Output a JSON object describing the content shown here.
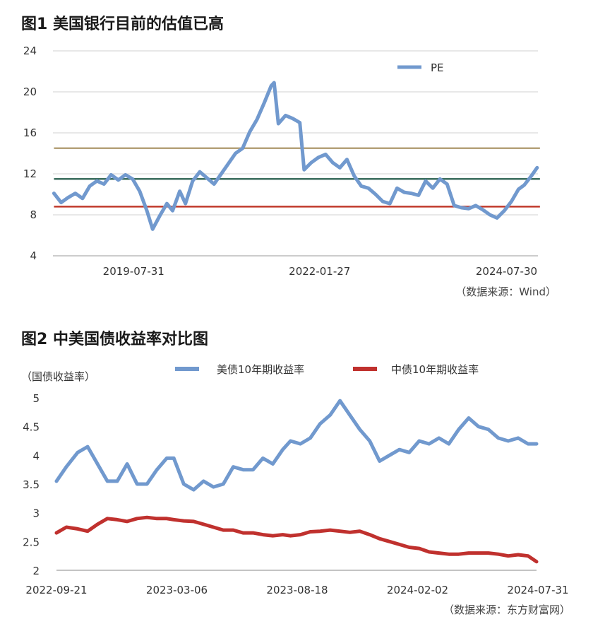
{
  "figure1": {
    "title": "图1  美国银行目前的估值已高",
    "source": "（数据来源：Wind）",
    "chart_data": {
      "type": "line",
      "title": "图1  美国银行目前的估值已高",
      "x_tick_labels": [
        "2019-07-31",
        "2022-01-27",
        "2024-07-30"
      ],
      "x_range": [
        "2018-07-01",
        "2024-12-31"
      ],
      "y_ticks": [
        4,
        8,
        12,
        16,
        20,
        24
      ],
      "ylim": [
        4,
        24
      ],
      "grid": "horizontal",
      "legend": "top-right",
      "series": [
        {
          "name": "PE",
          "color": "#7199CE",
          "points": [
            [
              "2018-07-06",
              10.1
            ],
            [
              "2018-08-10",
              9.2
            ],
            [
              "2018-09-14",
              9.7
            ],
            [
              "2018-10-19",
              10.1
            ],
            [
              "2018-11-23",
              9.6
            ],
            [
              "2018-12-28",
              10.8
            ],
            [
              "2019-02-01",
              11.3
            ],
            [
              "2019-03-08",
              11.0
            ],
            [
              "2019-04-12",
              11.9
            ],
            [
              "2019-05-17",
              11.4
            ],
            [
              "2019-06-21",
              11.9
            ],
            [
              "2019-07-26",
              11.5
            ],
            [
              "2019-08-30",
              10.3
            ],
            [
              "2019-10-04",
              8.4
            ],
            [
              "2019-11-01",
              6.6
            ],
            [
              "2019-12-06",
              7.9
            ],
            [
              "2020-01-10",
              9.1
            ],
            [
              "2020-02-07",
              8.4
            ],
            [
              "2020-03-13",
              10.3
            ],
            [
              "2020-04-10",
              9.1
            ],
            [
              "2020-05-15",
              11.3
            ],
            [
              "2020-06-19",
              12.2
            ],
            [
              "2020-07-24",
              11.6
            ],
            [
              "2020-08-28",
              11.0
            ],
            [
              "2020-10-02",
              12.0
            ],
            [
              "2020-11-06",
              13.0
            ],
            [
              "2020-12-11",
              14.0
            ],
            [
              "2021-01-15",
              14.5
            ],
            [
              "2021-02-19",
              16.1
            ],
            [
              "2021-03-26",
              17.3
            ],
            [
              "2021-04-30",
              18.9
            ],
            [
              "2021-06-04",
              20.6
            ],
            [
              "2021-06-18",
              20.9
            ],
            [
              "2021-07-09",
              16.9
            ],
            [
              "2021-08-13",
              17.7
            ],
            [
              "2021-09-17",
              17.4
            ],
            [
              "2021-10-22",
              17.0
            ],
            [
              "2021-11-12",
              12.4
            ],
            [
              "2021-12-17",
              13.1
            ],
            [
              "2022-01-21",
              13.6
            ],
            [
              "2022-02-25",
              13.9
            ],
            [
              "2022-04-01",
              13.1
            ],
            [
              "2022-05-06",
              12.6
            ],
            [
              "2022-06-10",
              13.4
            ],
            [
              "2022-07-15",
              11.8
            ],
            [
              "2022-08-19",
              10.8
            ],
            [
              "2022-09-23",
              10.6
            ],
            [
              "2022-10-28",
              10.0
            ],
            [
              "2022-12-02",
              9.3
            ],
            [
              "2023-01-06",
              9.1
            ],
            [
              "2023-02-10",
              10.6
            ],
            [
              "2023-03-17",
              10.2
            ],
            [
              "2023-04-21",
              10.1
            ],
            [
              "2023-05-26",
              9.9
            ],
            [
              "2023-06-30",
              11.3
            ],
            [
              "2023-08-04",
              10.6
            ],
            [
              "2023-09-08",
              11.5
            ],
            [
              "2023-10-13",
              11.0
            ],
            [
              "2023-11-17",
              8.9
            ],
            [
              "2023-12-22",
              8.7
            ],
            [
              "2024-01-26",
              8.6
            ],
            [
              "2024-03-01",
              8.9
            ],
            [
              "2024-04-05",
              8.5
            ],
            [
              "2024-05-10",
              8.0
            ],
            [
              "2024-06-14",
              7.7
            ],
            [
              "2024-07-19",
              8.4
            ],
            [
              "2024-08-23",
              9.3
            ],
            [
              "2024-09-27",
              10.5
            ],
            [
              "2024-10-25",
              10.9
            ],
            [
              "2024-11-29",
              11.8
            ],
            [
              "2024-12-27",
              12.6
            ]
          ]
        }
      ],
      "reference_lines": [
        {
          "value": 14.5,
          "color": "#B5A27A"
        },
        {
          "value": 11.5,
          "color": "#3C6E5F"
        },
        {
          "value": 8.8,
          "color": "#C0392B"
        }
      ]
    }
  },
  "figure2": {
    "title": "图2  中美国债收益率对比图",
    "source": "（数据来源：东方财富网）",
    "unit_label": "（国债收益率）",
    "chart_data": {
      "type": "line",
      "title": "图2  中美国债收益率对比图",
      "ylabel": "（国债收益率）",
      "x_tick_labels": [
        "2022-09-21",
        "2023-03-06",
        "2023-08-18",
        "2024-02-02",
        "2024-07-31"
      ],
      "x_range": [
        "2022-09-21",
        "2024-07-31"
      ],
      "y_ticks": [
        2,
        2.5,
        3,
        3.5,
        4,
        4.5,
        5
      ],
      "ylim": [
        2,
        5
      ],
      "grid": "none",
      "legend": "top",
      "series": [
        {
          "name": "美债10年期收益率",
          "color": "#7199CE",
          "points": [
            [
              "2022-09-21",
              3.55
            ],
            [
              "2022-10-05",
              3.8
            ],
            [
              "2022-10-21",
              4.05
            ],
            [
              "2022-11-04",
              4.15
            ],
            [
              "2022-11-18",
              3.85
            ],
            [
              "2022-12-02",
              3.55
            ],
            [
              "2022-12-16",
              3.55
            ],
            [
              "2022-12-30",
              3.85
            ],
            [
              "2023-01-13",
              3.5
            ],
            [
              "2023-01-27",
              3.5
            ],
            [
              "2023-02-10",
              3.75
            ],
            [
              "2023-02-24",
              3.95
            ],
            [
              "2023-03-06",
              3.95
            ],
            [
              "2023-03-20",
              3.5
            ],
            [
              "2023-04-03",
              3.4
            ],
            [
              "2023-04-17",
              3.55
            ],
            [
              "2023-05-01",
              3.45
            ],
            [
              "2023-05-15",
              3.5
            ],
            [
              "2023-05-29",
              3.8
            ],
            [
              "2023-06-12",
              3.75
            ],
            [
              "2023-06-26",
              3.75
            ],
            [
              "2023-07-10",
              3.95
            ],
            [
              "2023-07-24",
              3.85
            ],
            [
              "2023-08-07",
              4.1
            ],
            [
              "2023-08-18",
              4.25
            ],
            [
              "2023-09-01",
              4.2
            ],
            [
              "2023-09-15",
              4.3
            ],
            [
              "2023-09-29",
              4.55
            ],
            [
              "2023-10-13",
              4.7
            ],
            [
              "2023-10-27",
              4.95
            ],
            [
              "2023-11-10",
              4.7
            ],
            [
              "2023-11-24",
              4.45
            ],
            [
              "2023-12-08",
              4.25
            ],
            [
              "2023-12-22",
              3.9
            ],
            [
              "2024-01-05",
              4.0
            ],
            [
              "2024-01-19",
              4.1
            ],
            [
              "2024-02-02",
              4.05
            ],
            [
              "2024-02-16",
              4.25
            ],
            [
              "2024-03-01",
              4.2
            ],
            [
              "2024-03-15",
              4.3
            ],
            [
              "2024-03-29",
              4.2
            ],
            [
              "2024-04-12",
              4.45
            ],
            [
              "2024-04-26",
              4.65
            ],
            [
              "2024-05-10",
              4.5
            ],
            [
              "2024-05-24",
              4.45
            ],
            [
              "2024-06-07",
              4.3
            ],
            [
              "2024-06-21",
              4.25
            ],
            [
              "2024-07-05",
              4.3
            ],
            [
              "2024-07-19",
              4.2
            ],
            [
              "2024-07-31",
              4.2
            ]
          ]
        },
        {
          "name": "中债10年期收益率",
          "color": "#C0312E",
          "points": [
            [
              "2022-09-21",
              2.65
            ],
            [
              "2022-10-05",
              2.75
            ],
            [
              "2022-10-21",
              2.72
            ],
            [
              "2022-11-04",
              2.68
            ],
            [
              "2022-11-18",
              2.8
            ],
            [
              "2022-12-02",
              2.9
            ],
            [
              "2022-12-16",
              2.88
            ],
            [
              "2022-12-30",
              2.85
            ],
            [
              "2023-01-13",
              2.9
            ],
            [
              "2023-01-27",
              2.92
            ],
            [
              "2023-02-10",
              2.9
            ],
            [
              "2023-02-24",
              2.9
            ],
            [
              "2023-03-06",
              2.88
            ],
            [
              "2023-03-20",
              2.86
            ],
            [
              "2023-04-03",
              2.85
            ],
            [
              "2023-04-17",
              2.8
            ],
            [
              "2023-05-01",
              2.75
            ],
            [
              "2023-05-15",
              2.7
            ],
            [
              "2023-05-29",
              2.7
            ],
            [
              "2023-06-12",
              2.65
            ],
            [
              "2023-06-26",
              2.65
            ],
            [
              "2023-07-10",
              2.62
            ],
            [
              "2023-07-24",
              2.6
            ],
            [
              "2023-08-07",
              2.62
            ],
            [
              "2023-08-18",
              2.6
            ],
            [
              "2023-09-01",
              2.62
            ],
            [
              "2023-09-15",
              2.67
            ],
            [
              "2023-09-29",
              2.68
            ],
            [
              "2023-10-13",
              2.7
            ],
            [
              "2023-10-27",
              2.68
            ],
            [
              "2023-11-10",
              2.66
            ],
            [
              "2023-11-24",
              2.68
            ],
            [
              "2023-12-08",
              2.62
            ],
            [
              "2023-12-22",
              2.55
            ],
            [
              "2024-01-05",
              2.5
            ],
            [
              "2024-01-19",
              2.45
            ],
            [
              "2024-02-02",
              2.4
            ],
            [
              "2024-02-16",
              2.38
            ],
            [
              "2024-03-01",
              2.32
            ],
            [
              "2024-03-15",
              2.3
            ],
            [
              "2024-03-29",
              2.28
            ],
            [
              "2024-04-12",
              2.28
            ],
            [
              "2024-04-26",
              2.3
            ],
            [
              "2024-05-10",
              2.3
            ],
            [
              "2024-05-24",
              2.3
            ],
            [
              "2024-06-07",
              2.28
            ],
            [
              "2024-06-21",
              2.25
            ],
            [
              "2024-07-05",
              2.27
            ],
            [
              "2024-07-19",
              2.25
            ],
            [
              "2024-07-31",
              2.15
            ]
          ]
        }
      ]
    }
  }
}
